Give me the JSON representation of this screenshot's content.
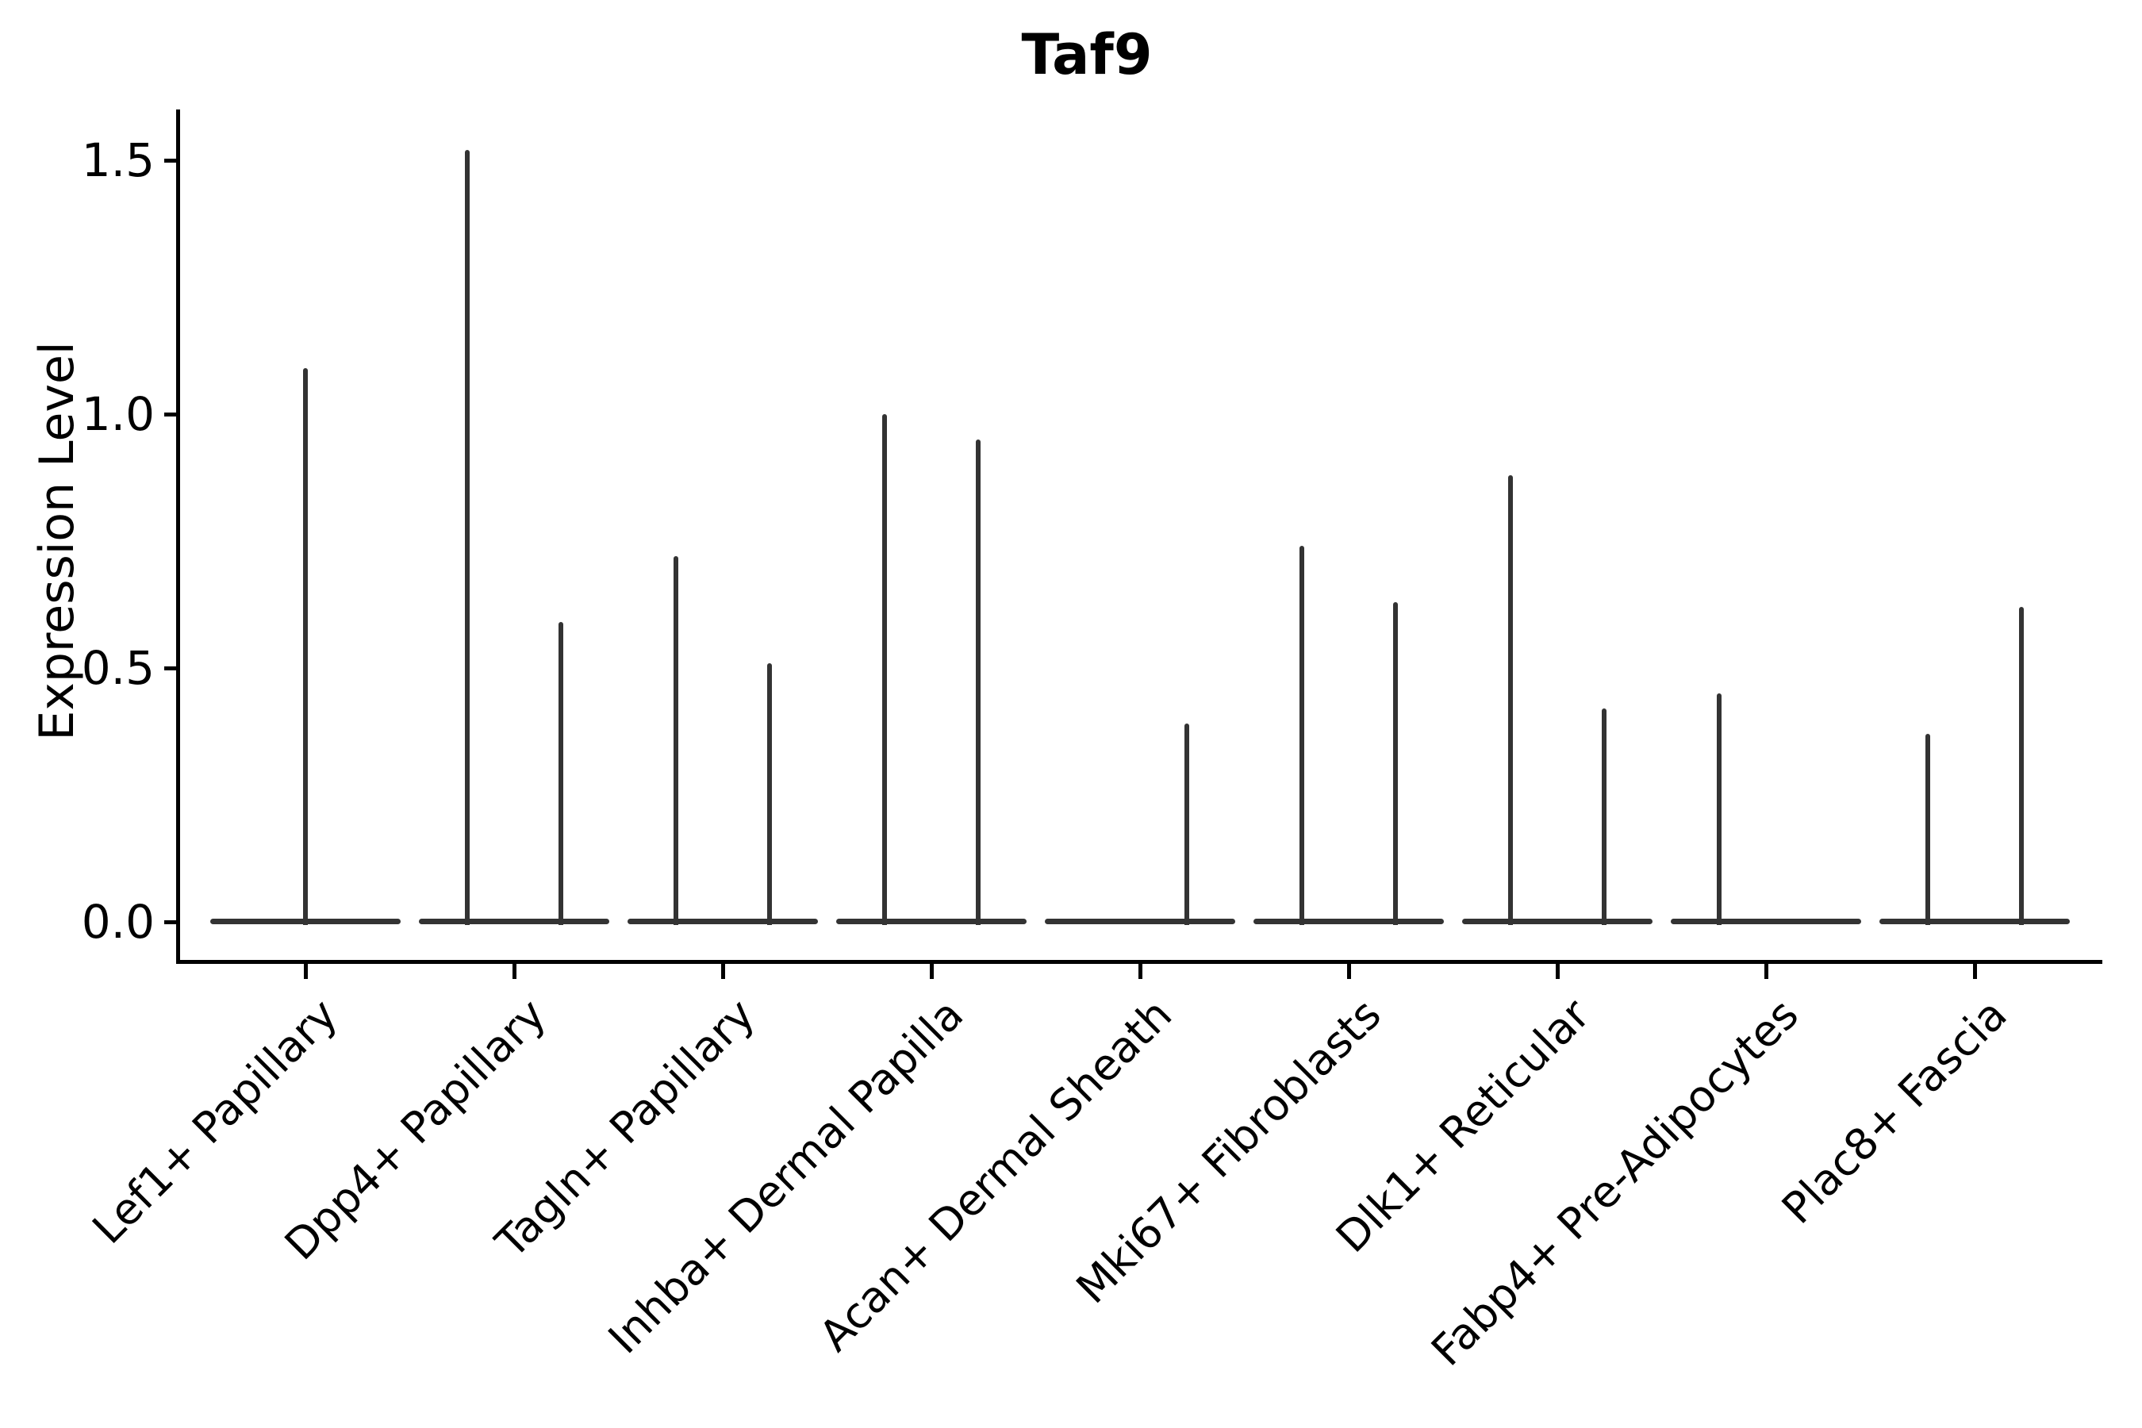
{
  "chart_data": {
    "type": "violin",
    "title": "Taf9",
    "xlabel": "",
    "ylabel": "Expression Level",
    "ylim": [
      0,
      1.6
    ],
    "yticks": [
      0.0,
      0.5,
      1.0,
      1.5
    ],
    "ytick_labels": [
      "0.0",
      "0.5",
      "1.0",
      "1.5"
    ],
    "grid": false,
    "legend": "none",
    "line_color": "#333333",
    "note": "Each violin is collapsed: a wide flat base at expression 0 with a thin spike rising to the maximum expression value",
    "categories": [
      "Lef1+ Papillary",
      "Dpp4+ Papillary",
      "Tagln+ Papillary",
      "Inhba+ Dermal Papilla",
      "Acan+ Dermal Sheath",
      "Mki67+ Fibroblasts",
      "Dlk1+ Reticular",
      "Fabp4+ Pre-Adipocytes",
      "Plac8+ Fascia"
    ],
    "violins": [
      {
        "label": "Lef1+ Papillary",
        "spikes": [
          {
            "position": "center",
            "max_expression": 1.09
          }
        ]
      },
      {
        "label": "Dpp4+ Papillary",
        "spikes": [
          {
            "position": "left",
            "max_expression": 1.52
          },
          {
            "position": "right",
            "max_expression": 0.59
          }
        ]
      },
      {
        "label": "Tagln+ Papillary",
        "spikes": [
          {
            "position": "left",
            "max_expression": 0.72
          },
          {
            "position": "right",
            "max_expression": 0.51
          }
        ]
      },
      {
        "label": "Inhba+ Dermal Papilla",
        "spikes": [
          {
            "position": "left",
            "max_expression": 1.0
          },
          {
            "position": "right",
            "max_expression": 0.95
          }
        ]
      },
      {
        "label": "Acan+ Dermal Sheath",
        "spikes": [
          {
            "position": "right",
            "max_expression": 0.39
          }
        ]
      },
      {
        "label": "Mki67+ Fibroblasts",
        "spikes": [
          {
            "position": "left",
            "max_expression": 0.74
          },
          {
            "position": "right",
            "max_expression": 0.63
          }
        ]
      },
      {
        "label": "Dlk1+ Reticular",
        "spikes": [
          {
            "position": "left",
            "max_expression": 0.88
          },
          {
            "position": "right",
            "max_expression": 0.42
          }
        ]
      },
      {
        "label": "Fabp4+ Pre-Adipocytes",
        "spikes": [
          {
            "position": "left",
            "max_expression": 0.45
          }
        ]
      },
      {
        "label": "Plac8+ Fascia",
        "spikes": [
          {
            "position": "left",
            "max_expression": 0.37
          },
          {
            "position": "right",
            "max_expression": 0.62
          }
        ]
      }
    ]
  }
}
